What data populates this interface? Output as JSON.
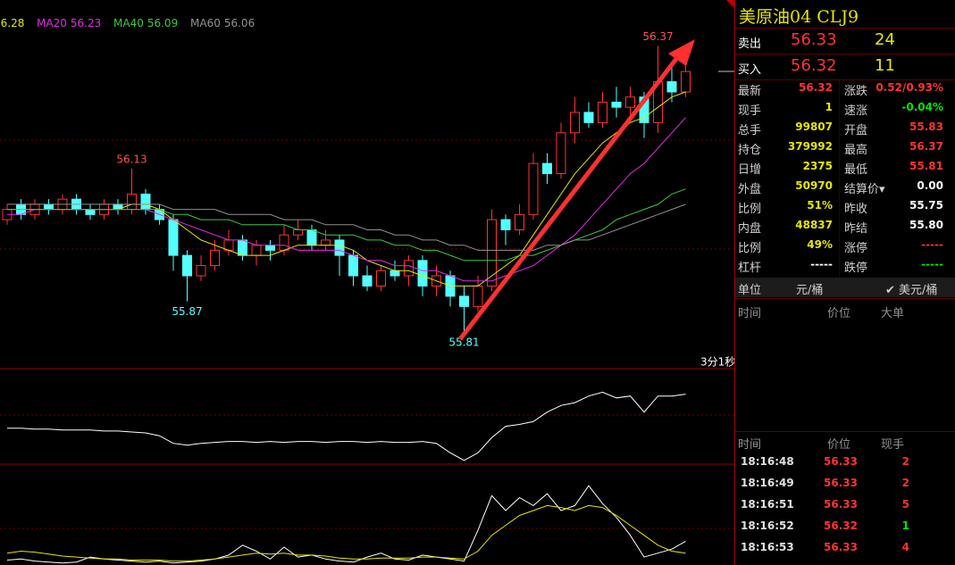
{
  "chart": {
    "type": "candlestick",
    "ylim": [
      55.74,
      56.46
    ],
    "up_color": "#ff3232",
    "down_color": "#54ffff",
    "ohlc": [
      [
        56.03,
        56.06,
        56.02,
        56.05
      ],
      [
        56.06,
        56.07,
        56.03,
        56.04
      ],
      [
        56.04,
        56.07,
        56.03,
        56.06
      ],
      [
        56.06,
        56.07,
        56.04,
        56.05
      ],
      [
        56.05,
        56.08,
        56.04,
        56.07
      ],
      [
        56.07,
        56.08,
        56.04,
        56.05
      ],
      [
        56.05,
        56.06,
        56.03,
        56.04
      ],
      [
        56.04,
        56.07,
        56.03,
        56.06
      ],
      [
        56.06,
        56.07,
        56.04,
        56.05
      ],
      [
        56.05,
        56.13,
        56.04,
        56.08
      ],
      [
        56.08,
        56.09,
        56.04,
        56.05
      ],
      [
        56.05,
        56.06,
        56.02,
        56.03
      ],
      [
        56.03,
        56.04,
        55.93,
        55.96
      ],
      [
        55.96,
        55.97,
        55.87,
        55.92
      ],
      [
        55.92,
        55.96,
        55.91,
        55.94
      ],
      [
        55.94,
        55.99,
        55.93,
        55.97
      ],
      [
        55.97,
        56.01,
        55.96,
        55.99
      ],
      [
        55.99,
        56.0,
        55.95,
        55.96
      ],
      [
        55.96,
        55.99,
        55.94,
        55.98
      ],
      [
        55.98,
        55.99,
        55.95,
        55.97
      ],
      [
        55.97,
        56.02,
        55.96,
        56.0
      ],
      [
        56.0,
        56.03,
        55.99,
        56.01
      ],
      [
        56.01,
        56.02,
        55.97,
        55.98
      ],
      [
        55.98,
        56.01,
        55.97,
        55.99
      ],
      [
        55.99,
        56.0,
        55.92,
        55.96
      ],
      [
        55.96,
        55.97,
        55.9,
        55.92
      ],
      [
        55.92,
        55.94,
        55.89,
        55.9
      ],
      [
        55.9,
        55.94,
        55.89,
        55.93
      ],
      [
        55.93,
        55.95,
        55.91,
        55.92
      ],
      [
        55.92,
        55.96,
        55.9,
        55.95
      ],
      [
        55.95,
        55.96,
        55.88,
        55.9
      ],
      [
        55.9,
        55.94,
        55.88,
        55.92
      ],
      [
        55.92,
        55.93,
        55.86,
        55.88
      ],
      [
        55.88,
        55.9,
        55.81,
        55.86
      ],
      [
        55.86,
        55.92,
        55.85,
        55.9
      ],
      [
        55.9,
        56.05,
        55.89,
        56.03
      ],
      [
        56.03,
        56.04,
        55.98,
        56.01
      ],
      [
        56.01,
        56.06,
        56.0,
        56.04
      ],
      [
        56.04,
        56.16,
        56.03,
        56.14
      ],
      [
        56.14,
        56.16,
        56.1,
        56.12
      ],
      [
        56.12,
        56.22,
        56.11,
        56.2
      ],
      [
        56.2,
        56.27,
        56.18,
        56.24
      ],
      [
        56.24,
        56.26,
        56.21,
        56.22
      ],
      [
        56.22,
        56.28,
        56.21,
        56.26
      ],
      [
        56.26,
        56.29,
        56.23,
        56.25
      ],
      [
        56.25,
        56.29,
        56.23,
        56.27
      ],
      [
        56.27,
        56.28,
        56.19,
        56.22
      ],
      [
        56.22,
        56.37,
        56.2,
        56.3
      ],
      [
        56.3,
        56.33,
        56.26,
        56.28
      ],
      [
        56.28,
        56.34,
        56.27,
        56.32
      ]
    ],
    "series": [
      {
        "color": "#e6e600",
        "values": [
          56.05,
          56.05,
          56.05,
          56.05,
          56.05,
          56.05,
          56.05,
          56.05,
          56.05,
          56.06,
          56.06,
          56.05,
          56.03,
          56.01,
          55.99,
          55.98,
          55.97,
          55.96,
          55.96,
          55.96,
          55.97,
          55.98,
          55.98,
          55.98,
          55.98,
          55.97,
          55.95,
          55.94,
          55.93,
          55.93,
          55.92,
          55.91,
          55.9,
          55.9,
          55.9,
          55.92,
          55.94,
          55.96,
          56.0,
          56.04,
          56.08,
          56.12,
          56.15,
          56.18,
          56.2,
          56.22,
          56.23,
          56.25,
          56.27,
          56.28
        ]
      },
      {
        "name": "MA20",
        "color": "#e628e6",
        "values": [
          56.04,
          56.04,
          56.05,
          56.05,
          56.05,
          56.05,
          56.05,
          56.05,
          56.05,
          56.05,
          56.05,
          56.04,
          56.03,
          56.02,
          56.01,
          56.0,
          55.99,
          55.99,
          55.98,
          55.98,
          55.98,
          55.97,
          55.97,
          55.97,
          55.97,
          55.96,
          55.95,
          55.95,
          55.94,
          55.94,
          55.93,
          55.93,
          55.92,
          55.91,
          55.91,
          55.91,
          55.92,
          55.93,
          55.94,
          55.96,
          55.98,
          56.0,
          56.03,
          56.06,
          56.09,
          56.12,
          56.14,
          56.17,
          56.2,
          56.23
        ]
      },
      {
        "name": "MA40",
        "color": "#3cc83c",
        "values": [
          56.05,
          56.05,
          56.05,
          56.05,
          56.05,
          56.05,
          56.05,
          56.05,
          56.05,
          56.05,
          56.05,
          56.05,
          56.04,
          56.04,
          56.03,
          56.03,
          56.03,
          56.02,
          56.02,
          56.02,
          56.02,
          56.01,
          56.01,
          56.0,
          56.0,
          56.0,
          55.99,
          55.99,
          55.98,
          55.98,
          55.97,
          55.97,
          55.96,
          55.95,
          55.95,
          55.95,
          55.95,
          55.96,
          55.96,
          55.97,
          55.98,
          55.99,
          56.0,
          56.01,
          56.03,
          56.04,
          56.05,
          56.06,
          56.08,
          56.09
        ]
      },
      {
        "name": "MA60",
        "color": "#909090",
        "values": [
          56.06,
          56.06,
          56.06,
          56.06,
          56.06,
          56.06,
          56.06,
          56.06,
          56.06,
          56.06,
          56.06,
          56.06,
          56.05,
          56.05,
          56.05,
          56.05,
          56.04,
          56.04,
          56.04,
          56.04,
          56.03,
          56.03,
          56.03,
          56.02,
          56.02,
          56.02,
          56.01,
          56.01,
          56.0,
          56.0,
          55.99,
          55.99,
          55.98,
          55.98,
          55.97,
          55.97,
          55.97,
          55.97,
          55.97,
          55.98,
          55.98,
          55.99,
          55.99,
          56.0,
          56.01,
          56.02,
          56.03,
          56.04,
          56.05,
          56.06
        ]
      }
    ],
    "annotations": [
      56.37,
      56.13,
      55.87,
      55.81
    ],
    "timer": "3分1秒",
    "panels": [
      {
        "ylim": [
          0,
          100
        ],
        "series": [
          {
            "color": "#ffffff",
            "values": [
              38,
              38,
              37,
              37,
              36,
              36,
              36,
              35,
              35,
              34,
              33,
              30,
              22,
              20,
              22,
              23,
              24,
              24,
              23,
              24,
              23,
              24,
              24,
              23,
              24,
              24,
              23,
              24,
              23,
              23,
              24,
              22,
              12,
              4,
              12,
              28,
              40,
              42,
              45,
              55,
              62,
              65,
              72,
              76,
              70,
              72,
              55,
              72,
              72,
              74
            ]
          }
        ]
      },
      {
        "ylim": [
          0,
          100
        ],
        "series": [
          {
            "color": "#ffffff",
            "values": [
              5,
              6,
              4,
              3,
              2,
              3,
              8,
              6,
              5,
              4,
              3,
              4,
              2,
              3,
              4,
              6,
              10,
              20,
              14,
              6,
              18,
              8,
              10,
              6,
              4,
              3,
              8,
              12,
              6,
              5,
              10,
              8,
              6,
              4,
              35,
              70,
              55,
              68,
              60,
              72,
              55,
              60,
              80,
              62,
              48,
              30,
              8,
              12,
              16,
              24
            ]
          },
          {
            "color": "#e6e600",
            "values": [
              12,
              14,
              13,
              11,
              9,
              8,
              7,
              6,
              6,
              5,
              5,
              5,
              4,
              4,
              5,
              6,
              8,
              10,
              12,
              11,
              12,
              10,
              10,
              9,
              7,
              6,
              6,
              7,
              7,
              7,
              8,
              8,
              7,
              6,
              14,
              30,
              40,
              50,
              55,
              60,
              58,
              55,
              60,
              58,
              50,
              40,
              30,
              20,
              14,
              12
            ]
          }
        ]
      }
    ]
  },
  "quote": {
    "title": "美原油04  CLJ9",
    "ask": {
      "label": "卖出",
      "price": "56.33",
      "size": "24"
    },
    "bid": {
      "label": "买入",
      "price": "56.32",
      "size": "11"
    },
    "rows": [
      [
        {
          "label": "最新",
          "value": "56.32",
          "color": "#ff3232"
        },
        {
          "label": "涨跌",
          "value": "0.52/0.93%",
          "color": "#ff3232"
        }
      ],
      [
        {
          "label": "现手",
          "value": "1",
          "color": "#e6e600"
        },
        {
          "label": "速涨",
          "value": "-0.04%",
          "color": "#00e600"
        }
      ],
      [
        {
          "label": "总手",
          "value": "99807",
          "color": "#e6e600"
        },
        {
          "label": "开盘",
          "value": "55.83",
          "color": "#ff3232"
        }
      ],
      [
        {
          "label": "持仓",
          "value": "379992",
          "color": "#e6e600"
        },
        {
          "label": "最高",
          "value": "56.37",
          "color": "#ff3232"
        }
      ],
      [
        {
          "label": "日增",
          "value": "2375",
          "color": "#e6e600"
        },
        {
          "label": "最低",
          "value": "55.81",
          "color": "#ff3232"
        }
      ],
      [
        {
          "label": "外盘",
          "value": "50970",
          "color": "#e6e600"
        },
        {
          "label": "结算价▾",
          "value": "0.00",
          "color": "#ffffff"
        }
      ],
      [
        {
          "label": "比例",
          "value": "51%",
          "color": "#e6e600"
        },
        {
          "label": "昨收",
          "value": "55.75",
          "color": "#ffffff"
        }
      ],
      [
        {
          "label": "内盘",
          "value": "48837",
          "color": "#e6e600"
        },
        {
          "label": "昨结",
          "value": "55.80",
          "color": "#ffffff"
        }
      ],
      [
        {
          "label": "比例",
          "value": "49%",
          "color": "#e6e600"
        },
        {
          "label": "涨停",
          "value": "-----",
          "color": "#ff3232"
        }
      ],
      [
        {
          "label": "杠杆",
          "value": "-----",
          "color": "#ffffff"
        },
        {
          "label": "跌停",
          "value": "-----",
          "color": "#00e600"
        }
      ]
    ],
    "unit": {
      "label": "单位",
      "option1": "元/桶",
      "option2": "✔ 美元/桶"
    },
    "big_orders_header": [
      "时间",
      "价位",
      "大单"
    ],
    "trades_header": [
      "时间",
      "价位",
      "现手"
    ],
    "trades": [
      {
        "time": "18:16:48",
        "price": "56.33",
        "qty": "2",
        "color": "#ff3232"
      },
      {
        "time": "18:16:49",
        "price": "56.33",
        "qty": "2",
        "color": "#ff3232"
      },
      {
        "time": "18:16:51",
        "price": "56.33",
        "qty": "5",
        "color": "#ff3232"
      },
      {
        "time": "18:16:52",
        "price": "56.32",
        "qty": "1",
        "color": "#00e600"
      },
      {
        "time": "18:16:53",
        "price": "56.33",
        "qty": "4",
        "color": "#ff3232"
      }
    ]
  }
}
